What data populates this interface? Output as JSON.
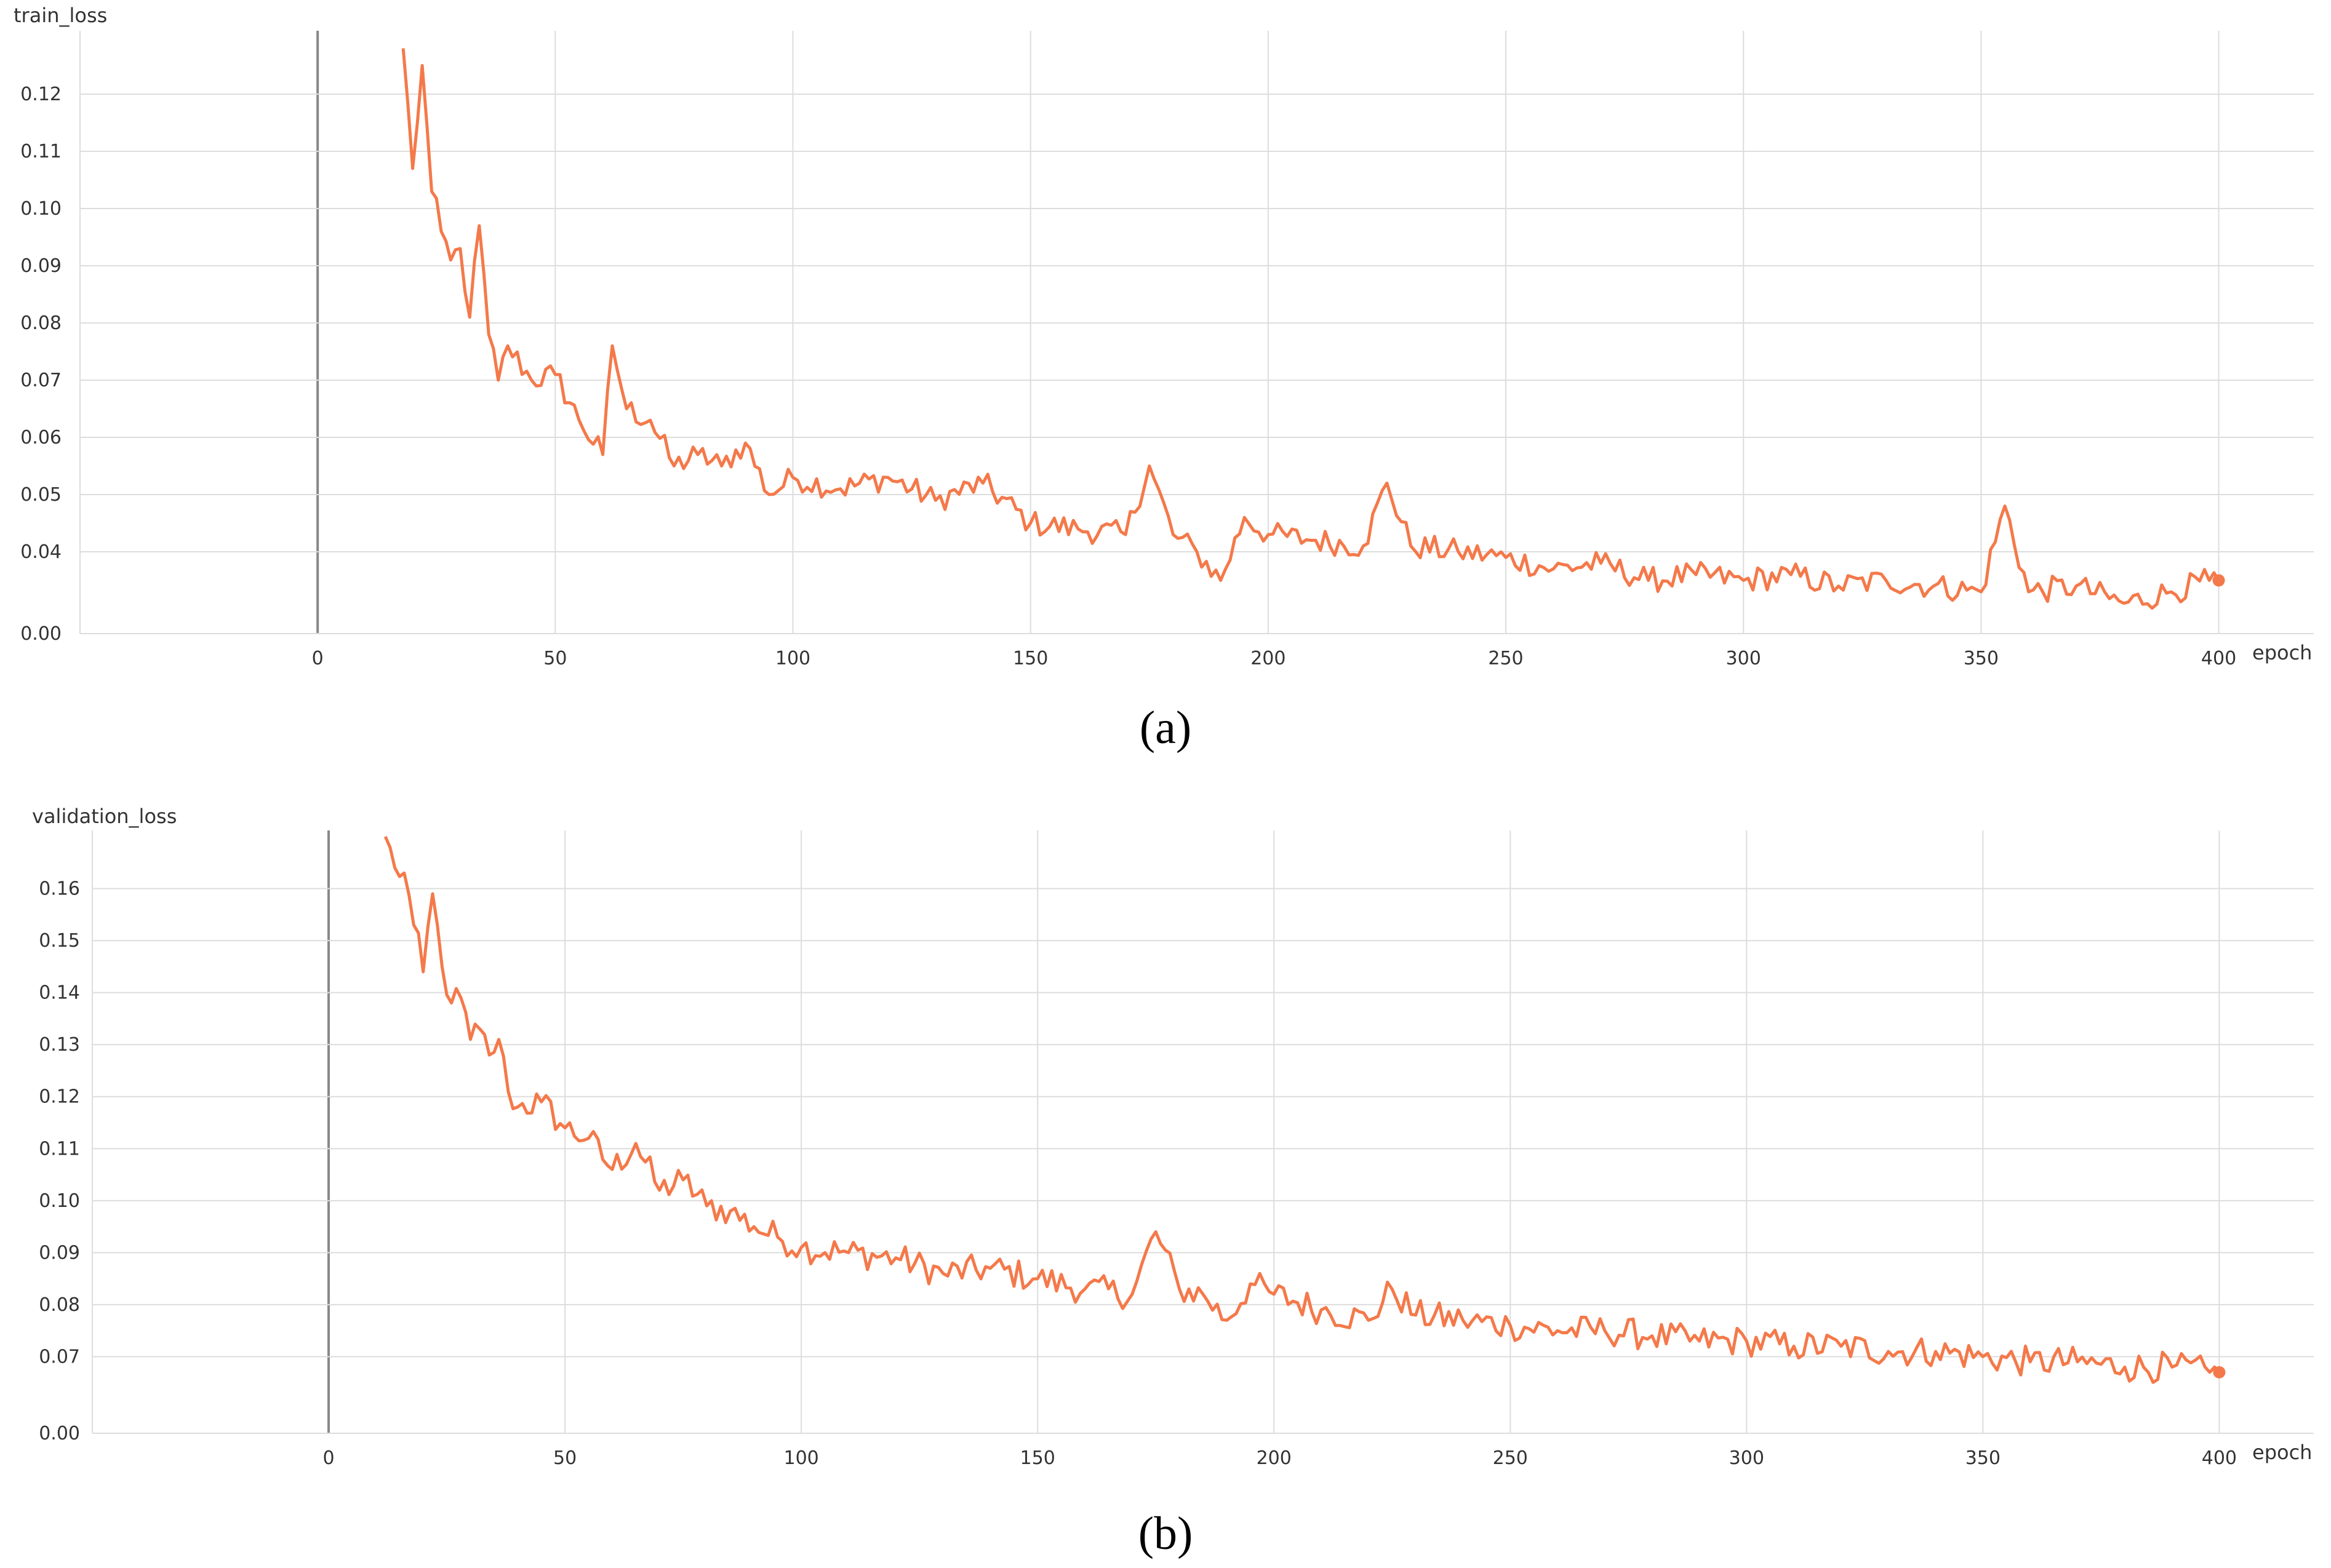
{
  "chart_data": [
    {
      "type": "line",
      "title": "train_loss",
      "xlabel": "epoch",
      "ylabel": "",
      "xlim": [
        -50,
        420
      ],
      "ylim": [
        0.0,
        0.13
      ],
      "x_ticks": [
        0,
        50,
        100,
        150,
        200,
        250,
        300,
        350,
        400
      ],
      "y_ticks": [
        0.0,
        0.04,
        0.05,
        0.06,
        0.07,
        0.08,
        0.09,
        0.1,
        0.11,
        0.12
      ],
      "y_tick_labels": [
        "0.00",
        "0.04",
        "0.05",
        "0.06",
        "0.07",
        "0.08",
        "0.09",
        "0.10",
        "0.11",
        "0.12"
      ],
      "grid": true,
      "line_color": "#f4794a",
      "series": [
        {
          "x": [
            18,
            20,
            22,
            24,
            26,
            28,
            30,
            32,
            34,
            36,
            38,
            40,
            45,
            50,
            55,
            60,
            62,
            65,
            70,
            75,
            80,
            85,
            90,
            95,
            100,
            110,
            120,
            130,
            140,
            150,
            160,
            170,
            175,
            180,
            185,
            190,
            195,
            200,
            210,
            220,
            225,
            230,
            240,
            250,
            260,
            270,
            280,
            290,
            300,
            310,
            320,
            330,
            340,
            350,
            355,
            360,
            370,
            380,
            390,
            398,
            400
          ],
          "y": [
            0.128,
            0.107,
            0.125,
            0.103,
            0.096,
            0.091,
            0.093,
            0.081,
            0.097,
            0.078,
            0.07,
            0.076,
            0.07,
            0.071,
            0.063,
            0.057,
            0.076,
            0.065,
            0.063,
            0.055,
            0.057,
            0.055,
            0.059,
            0.05,
            0.053,
            0.051,
            0.053,
            0.049,
            0.052,
            0.045,
            0.044,
            0.043,
            0.055,
            0.043,
            0.04,
            0.035,
            0.046,
            0.043,
            0.042,
            0.041,
            0.052,
            0.041,
            0.04,
            0.039,
            0.037,
            0.038,
            0.035,
            0.036,
            0.035,
            0.036,
            0.034,
            0.035,
            0.034,
            0.033,
            0.048,
            0.033,
            0.034,
            0.031,
            0.033,
            0.035,
            0.035
          ]
        }
      ]
    },
    {
      "type": "line",
      "title": "validation_loss",
      "xlabel": "epoch",
      "ylabel": "",
      "xlim": [
        -50,
        420
      ],
      "ylim": [
        0.0,
        0.17
      ],
      "x_ticks": [
        0,
        50,
        100,
        150,
        200,
        250,
        300,
        350,
        400
      ],
      "y_ticks": [
        0.0,
        0.07,
        0.08,
        0.09,
        0.1,
        0.11,
        0.12,
        0.13,
        0.14,
        0.15,
        0.16
      ],
      "y_tick_labels": [
        "0.00",
        "0.07",
        "0.08",
        "0.09",
        "0.10",
        "0.11",
        "0.12",
        "0.13",
        "0.14",
        "0.15",
        "0.16"
      ],
      "grid": true,
      "line_color": "#f4794a",
      "series": [
        {
          "x": [
            12,
            14,
            16,
            18,
            20,
            22,
            24,
            26,
            28,
            30,
            32,
            34,
            36,
            38,
            40,
            45,
            50,
            55,
            60,
            65,
            70,
            75,
            80,
            85,
            90,
            95,
            100,
            110,
            120,
            130,
            140,
            150,
            160,
            170,
            175,
            180,
            185,
            190,
            195,
            200,
            210,
            220,
            225,
            230,
            240,
            250,
            260,
            270,
            280,
            290,
            300,
            310,
            320,
            330,
            340,
            350,
            360,
            370,
            380,
            390,
            398,
            400
          ],
          "y": [
            0.17,
            0.164,
            0.163,
            0.153,
            0.144,
            0.159,
            0.145,
            0.138,
            0.139,
            0.131,
            0.133,
            0.128,
            0.131,
            0.121,
            0.118,
            0.119,
            0.114,
            0.112,
            0.106,
            0.111,
            0.102,
            0.104,
            0.099,
            0.098,
            0.095,
            0.093,
            0.091,
            0.09,
            0.089,
            0.086,
            0.087,
            0.085,
            0.083,
            0.082,
            0.094,
            0.083,
            0.082,
            0.077,
            0.084,
            0.082,
            0.079,
            0.077,
            0.083,
            0.078,
            0.077,
            0.076,
            0.075,
            0.075,
            0.074,
            0.073,
            0.073,
            0.072,
            0.072,
            0.071,
            0.071,
            0.07,
            0.069,
            0.069,
            0.068,
            0.068,
            0.067,
            0.067
          ]
        }
      ]
    }
  ],
  "captions": {
    "a": "(a)",
    "b": "(b)"
  }
}
